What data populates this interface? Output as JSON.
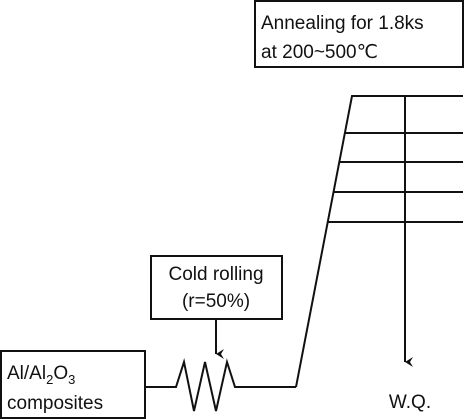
{
  "annealing": {
    "lines": [
      "Annealing for 1.8ks",
      "at 200~500℃"
    ]
  },
  "rolling": {
    "lines": [
      "Cold rolling",
      "(r=50%)"
    ]
  },
  "material": {
    "formula": [
      "Al/Al",
      "2",
      "O",
      "3"
    ],
    "name": "composites"
  },
  "quench": "W.Q."
}
